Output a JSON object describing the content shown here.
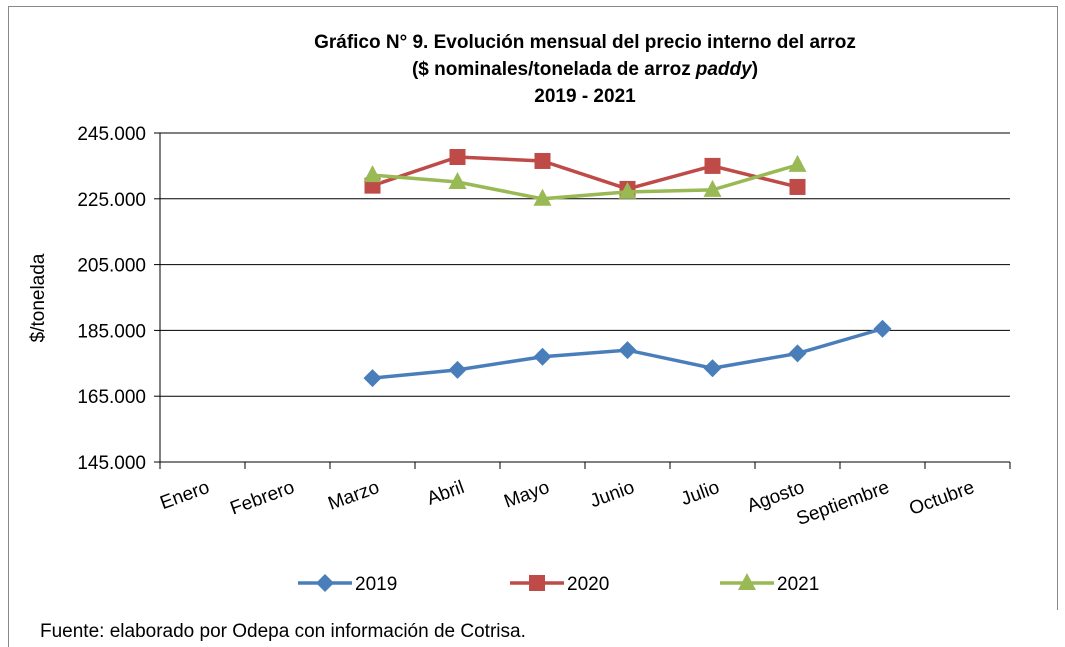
{
  "chart_data": {
    "type": "line",
    "title": [
      "Gráfico N° 9. Evolución mensual del precio interno del arroz",
      [
        "($ nominales/tonelada de arroz",
        "paddy",
        ")"
      ],
      "2019 - 2021"
    ],
    "y_label": "$/tonelada",
    "categories": [
      "Enero",
      "Febrero",
      "Marzo",
      "Abril",
      "Mayo",
      "Junio",
      "Julio",
      "Agosto",
      "Septiembre",
      "Octubre"
    ],
    "series": [
      {
        "name": "2019",
        "color": "#4a7ebb",
        "marker": "diamond",
        "values": [
          null,
          null,
          170500,
          173000,
          177000,
          179000,
          173500,
          178000,
          185500,
          null
        ]
      },
      {
        "name": "2020",
        "color": "#be4b48",
        "marker": "square",
        "values": [
          null,
          null,
          229000,
          237700,
          236500,
          228000,
          235000,
          228600,
          null,
          null
        ]
      },
      {
        "name": "2021",
        "color": "#98b954",
        "marker": "triangle",
        "values": [
          null,
          null,
          232200,
          230100,
          225000,
          227100,
          227700,
          235300,
          null,
          null
        ]
      }
    ],
    "ylim": [
      145000,
      245000
    ],
    "yticks": [
      {
        "value": 145000,
        "label": "145.000"
      },
      {
        "value": 165000,
        "label": "165.000"
      },
      {
        "value": 185000,
        "label": "185.000"
      },
      {
        "value": 205000,
        "label": "205.000"
      },
      {
        "value": 225000,
        "label": "225.000"
      },
      {
        "value": 245000,
        "label": "245.000"
      }
    ],
    "grid": true,
    "legend": "bottom",
    "source": "Fuente: elaborado por Odepa con información de Cotrisa."
  }
}
